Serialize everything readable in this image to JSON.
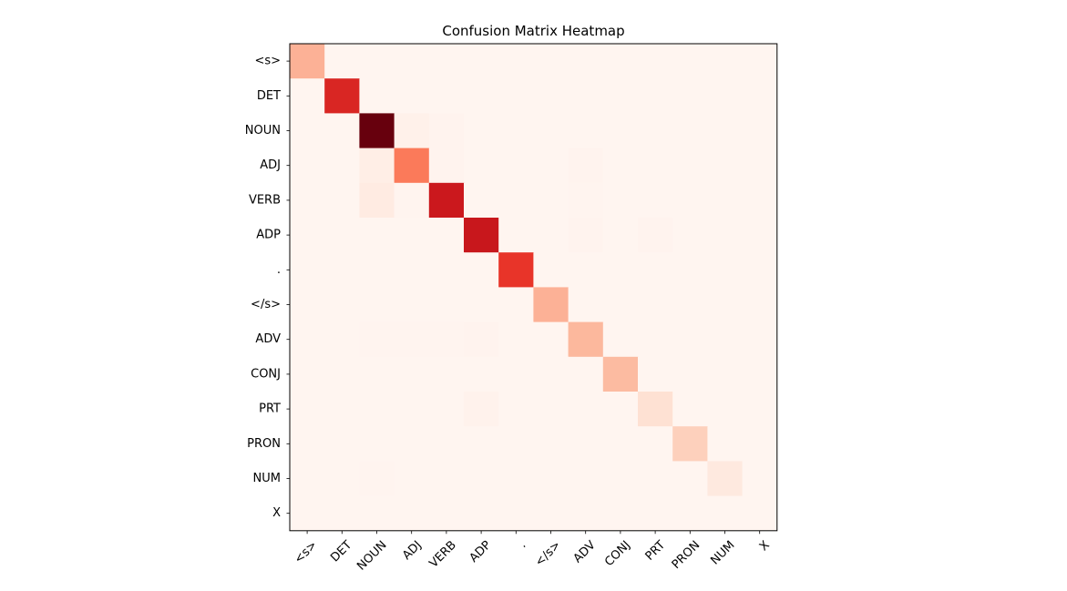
{
  "chart_data": {
    "type": "heatmap",
    "title": "Confusion Matrix Heatmap",
    "colormap": "Reds",
    "row_labels": [
      "<s>",
      "DET",
      "NOUN",
      "ADJ",
      "VERB",
      "ADP",
      ".",
      "</s>",
      "ADV",
      "CONJ",
      "PRT",
      "PRON",
      "NUM",
      "X"
    ],
    "col_labels": [
      "<s>",
      "DET",
      "NOUN",
      "ADJ",
      "VERB",
      "ADP",
      ".",
      "</s>",
      "ADV",
      "CONJ",
      "PRT",
      "PRON",
      "NUM",
      "X"
    ],
    "x_tick_rotation_deg": 45,
    "values": [
      [
        0.28,
        0,
        0,
        0,
        0,
        0,
        0,
        0,
        0,
        0,
        0,
        0,
        0,
        0
      ],
      [
        0,
        0.7,
        0,
        0,
        0,
        0,
        0,
        0,
        0,
        0,
        0,
        0,
        0,
        0
      ],
      [
        0,
        0,
        1.0,
        0.025,
        0.01,
        0,
        0,
        0,
        0,
        0,
        0,
        0,
        0,
        0
      ],
      [
        0,
        0,
        0.04,
        0.45,
        0.01,
        0,
        0,
        0,
        0.01,
        0,
        0,
        0,
        0,
        0
      ],
      [
        0,
        0,
        0.06,
        0.005,
        0.75,
        0,
        0,
        0,
        0.005,
        0,
        0,
        0,
        0,
        0
      ],
      [
        0,
        0,
        0,
        0,
        0,
        0.76,
        0,
        0,
        0.01,
        0,
        0.01,
        0,
        0,
        0
      ],
      [
        0,
        0,
        0,
        0,
        0,
        0,
        0.65,
        0,
        0,
        0,
        0,
        0,
        0,
        0
      ],
      [
        0,
        0,
        0,
        0,
        0,
        0,
        0,
        0.28,
        0,
        0,
        0,
        0,
        0,
        0
      ],
      [
        0,
        0,
        0.005,
        0.005,
        0.005,
        0.01,
        0,
        0,
        0.26,
        0,
        0,
        0,
        0,
        0
      ],
      [
        0,
        0,
        0,
        0,
        0,
        0,
        0,
        0,
        0,
        0.25,
        0,
        0,
        0,
        0
      ],
      [
        0,
        0,
        0,
        0,
        0,
        0.015,
        0,
        0,
        0,
        0,
        0.12,
        0,
        0,
        0
      ],
      [
        0,
        0,
        0,
        0,
        0,
        0,
        0,
        0,
        0,
        0,
        0,
        0.18,
        0,
        0
      ],
      [
        0,
        0,
        0.005,
        0,
        0,
        0,
        0,
        0,
        0,
        0,
        0,
        0,
        0.07,
        0
      ],
      [
        0,
        0,
        0,
        0,
        0,
        0,
        0,
        0,
        0,
        0,
        0,
        0,
        0,
        0
      ]
    ]
  }
}
